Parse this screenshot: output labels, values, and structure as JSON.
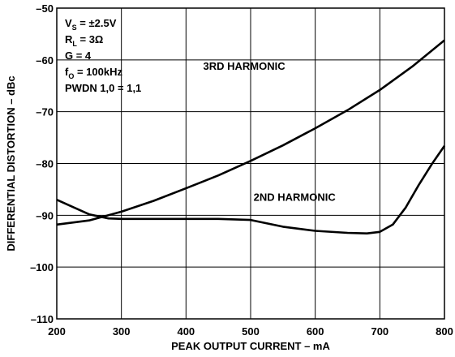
{
  "chart_data": {
    "type": "line",
    "title": "",
    "xlabel": "PEAK OUTPUT CURRENT – mA",
    "ylabel": "DIFFERENTIAL DISTORTION – dBc",
    "xlim": [
      200,
      800
    ],
    "ylim": [
      -110,
      -50
    ],
    "x_ticks": [
      "200",
      "300",
      "400",
      "500",
      "600",
      "700",
      "800"
    ],
    "y_ticks": [
      "–50",
      "–60",
      "–70",
      "–80",
      "–90",
      "–100",
      "–110"
    ],
    "grid": true,
    "series": [
      {
        "name": "3RD HARMONIC",
        "x": [
          200,
          250,
          300,
          350,
          400,
          450,
          500,
          550,
          600,
          650,
          700,
          750,
          800
        ],
        "y": [
          -91.8,
          -91.0,
          -89.3,
          -87.2,
          -84.8,
          -82.3,
          -79.5,
          -76.5,
          -73.2,
          -69.7,
          -65.8,
          -61.3,
          -56.2
        ]
      },
      {
        "name": "2ND HARMONIC",
        "x": [
          200,
          250,
          280,
          300,
          350,
          400,
          450,
          500,
          550,
          600,
          650,
          680,
          700,
          720,
          740,
          760,
          780,
          800
        ],
        "y": [
          -87.0,
          -89.8,
          -90.6,
          -90.7,
          -90.7,
          -90.7,
          -90.7,
          -90.9,
          -92.2,
          -93.0,
          -93.4,
          -93.5,
          -93.2,
          -91.8,
          -88.5,
          -84.2,
          -80.2,
          -76.6
        ]
      }
    ],
    "conditions": [
      {
        "main": "V",
        "sub": "S",
        "rest": " = ±2.5V"
      },
      {
        "main": "R",
        "sub": "L",
        "rest": " = 3Ω"
      },
      {
        "main": "G = 4",
        "sub": "",
        "rest": ""
      },
      {
        "main": "f",
        "sub": "O",
        "rest": " = 100kHz"
      },
      {
        "main": "PWDN 1,0 = 1,1",
        "sub": "",
        "rest": ""
      }
    ],
    "line_color": "#000000"
  }
}
